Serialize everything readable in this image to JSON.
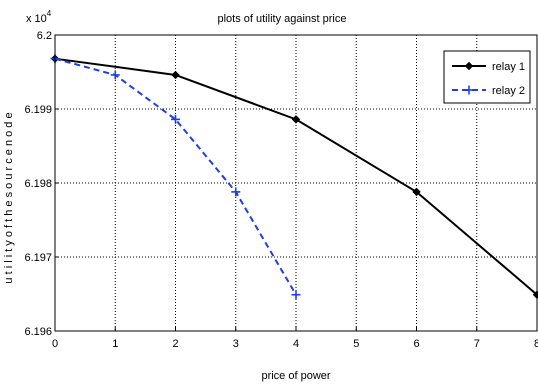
{
  "chart_data": {
    "type": "line",
    "title": "plots of utility against price",
    "xlabel": "price of power",
    "ylabel": "u t i l i t y   o f   t h e   s o u r c e   n o d e",
    "y_multiplier_label": "x 10",
    "y_multiplier_exponent": "4",
    "xlim": [
      0,
      8
    ],
    "ylim": [
      6.196,
      6.2
    ],
    "x_ticks": [
      "0",
      "1",
      "2",
      "3",
      "4",
      "5",
      "6",
      "7",
      "8"
    ],
    "y_ticks": [
      "6.196",
      "6.197",
      "6.198",
      "6.199",
      "6.2"
    ],
    "grid": true,
    "legend_position": "top-right",
    "series": [
      {
        "name": "relay 1",
        "color": "#000000",
        "line_style": "solid",
        "marker": "diamond",
        "x": [
          0,
          2,
          4,
          6,
          8
        ],
        "y": [
          6.19968,
          6.19946,
          6.19886,
          6.19788,
          6.19649
        ]
      },
      {
        "name": "relay 2",
        "color": "#1f3fe0",
        "line_style": "dashed",
        "marker": "plus",
        "x": [
          0,
          1,
          2,
          3,
          4
        ],
        "y": [
          6.19968,
          6.19946,
          6.19886,
          6.19788,
          6.19649
        ]
      }
    ]
  }
}
